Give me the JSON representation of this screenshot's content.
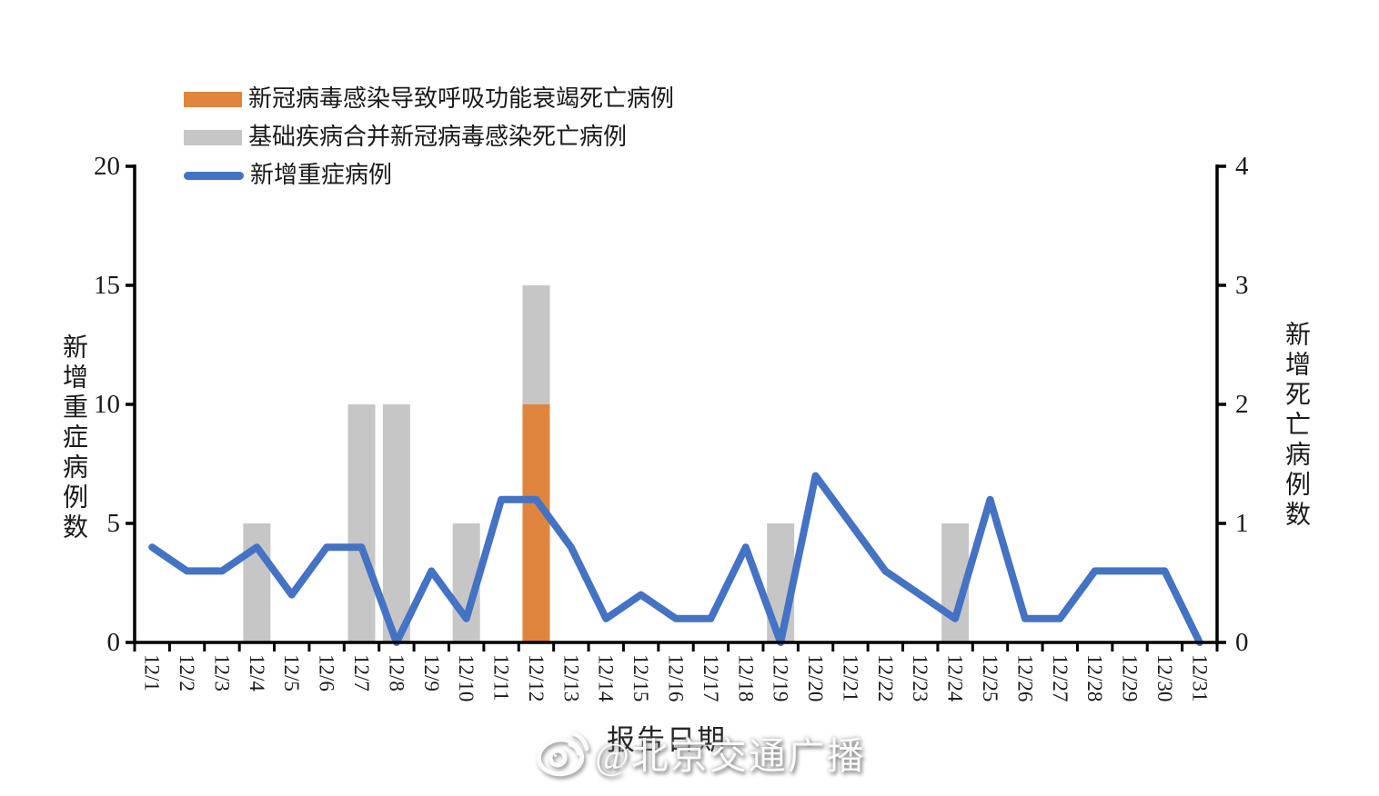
{
  "colors": {
    "orange": "#E0853E",
    "gray": "#C6C6C6",
    "blue": "#4472C4",
    "axis": "#000000",
    "text": "#1A1A1A",
    "background": "#FFFFFF"
  },
  "watermark": {
    "text": "@北京交通广播",
    "icon": "weibo-icon"
  },
  "chart_data": {
    "type": "combo-bar-line",
    "title": "",
    "legend_position": "top-left",
    "grid": false,
    "x_axis": {
      "title": "报告日期",
      "categories": [
        "12/1",
        "12/2",
        "12/3",
        "12/4",
        "12/5",
        "12/6",
        "12/7",
        "12/8",
        "12/9",
        "12/10",
        "12/11",
        "12/12",
        "12/13",
        "12/14",
        "12/15",
        "12/16",
        "12/17",
        "12/18",
        "12/19",
        "12/20",
        "12/21",
        "12/22",
        "12/23",
        "12/24",
        "12/25",
        "12/26",
        "12/27",
        "12/28",
        "12/29",
        "12/30",
        "12/31"
      ]
    },
    "left_axis": {
      "title": "新增重症病例数",
      "min": 0,
      "max": 20,
      "ticks": [
        0,
        5,
        10,
        15,
        20
      ]
    },
    "right_axis": {
      "title": "新增死亡病例数",
      "min": 0,
      "max": 4,
      "ticks": [
        0,
        1,
        2,
        3,
        4
      ]
    },
    "series": [
      {
        "name": "新冠病毒感染导致呼吸功能衰竭死亡病例",
        "type": "bar",
        "stacked": true,
        "axis": "right",
        "color_key": "orange",
        "values": [
          0,
          0,
          0,
          0,
          0,
          0,
          0,
          0,
          0,
          0,
          0,
          2,
          0,
          0,
          0,
          0,
          0,
          0,
          0,
          0,
          0,
          0,
          0,
          0,
          0,
          0,
          0,
          0,
          0,
          0,
          0
        ]
      },
      {
        "name": "基础疾病合并新冠病毒感染死亡病例",
        "type": "bar",
        "stacked": true,
        "axis": "right",
        "color_key": "gray",
        "values": [
          0,
          0,
          0,
          1,
          0,
          0,
          2,
          2,
          0,
          1,
          0,
          1,
          0,
          0,
          0,
          0,
          0,
          0,
          1,
          0,
          0,
          0,
          0,
          1,
          0,
          0,
          0,
          0,
          0,
          0,
          0
        ]
      },
      {
        "name": "新增重症病例",
        "type": "line",
        "axis": "left",
        "color_key": "blue",
        "values": [
          4,
          3,
          3,
          4,
          2,
          4,
          4,
          0,
          3,
          1,
          6,
          6,
          4,
          1,
          2,
          1,
          1,
          4,
          0,
          7,
          5,
          3,
          2,
          1,
          6,
          1,
          1,
          3,
          3,
          3,
          0
        ]
      }
    ]
  }
}
